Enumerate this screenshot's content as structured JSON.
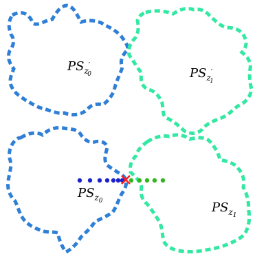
{
  "colors": {
    "blue_region": "#2f7fd6",
    "green_region": "#33e8a2",
    "point_blue": "#1c22c9",
    "point_green": "#33b521",
    "cross": "#ff1a1a",
    "background": "#ffffff"
  },
  "labels": {
    "top_left": {
      "base": "PS",
      "sub": "z",
      "subsub": "0",
      "prime": "′"
    },
    "top_right": {
      "base": "PS",
      "sub": "z",
      "subsub": "1",
      "prime": "′"
    },
    "bottom_left": {
      "base": "PS",
      "sub": "z",
      "subsub": "0"
    },
    "bottom_right": {
      "base": "PS",
      "sub": "z",
      "subsub": "1"
    }
  },
  "points": {
    "blue_count": 7,
    "green_count": 5,
    "cross_count": 1
  }
}
